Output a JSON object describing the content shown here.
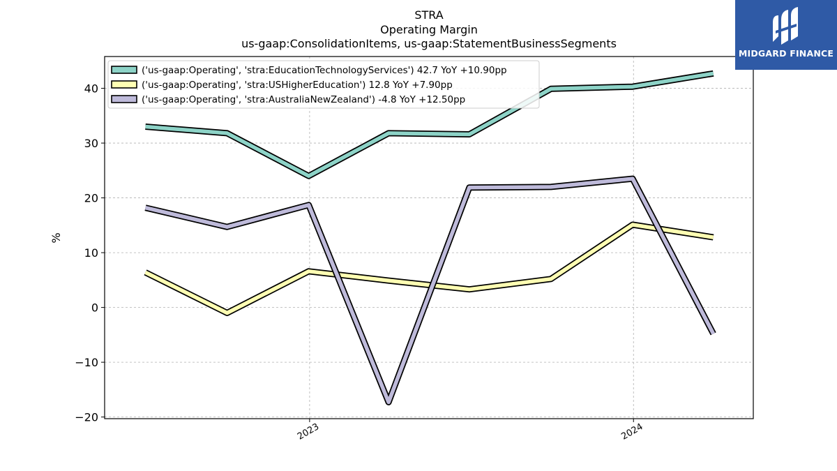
{
  "chart_data": {
    "type": "line",
    "title": "STRA",
    "subtitle": "Operating Margin",
    "subtitle2": "us-gaap:ConsolidationItems, us-gaap:StatementBusinessSegments",
    "xlabel": "",
    "ylabel": "%",
    "x": [
      "2022-06-30",
      "2022-09-30",
      "2022-12-31",
      "2023-03-31",
      "2023-06-30",
      "2023-09-30",
      "2023-12-31",
      "2024-03-31"
    ],
    "xticks": [
      "2023",
      "2024"
    ],
    "xtick_dates": [
      "2023-01-01",
      "2024-01-01"
    ],
    "xlim": [
      "2022-05-15",
      "2024-05-15"
    ],
    "yticks": [
      40,
      30,
      20,
      10,
      0,
      -10,
      -20
    ],
    "ytick_labels": [
      "40",
      "30",
      "20",
      "10",
      "0",
      "−10",
      "−20"
    ],
    "ylim": [
      -20.3,
      45.8
    ],
    "grid": true,
    "legend_position": "top-left",
    "series": [
      {
        "name": "('us-gaap:Operating', 'stra:EducationTechnologyServices') 42.7 YoY +10.90pp",
        "color": "#8dd3c7",
        "values": [
          33.0,
          31.8,
          24.0,
          31.8,
          31.6,
          39.9,
          40.3,
          42.7
        ]
      },
      {
        "name": "('us-gaap:Operating', 'stra:USHigherEducation') 12.8 YoY +7.90pp",
        "color": "#ffffb3",
        "values": [
          6.4,
          -1.0,
          6.6,
          4.9,
          3.3,
          5.2,
          15.1,
          12.8
        ]
      },
      {
        "name": "('us-gaap:Operating', 'stra:AustraliaNewZealand') -4.8 YoY +12.50pp",
        "color": "#bebada",
        "values": [
          18.2,
          14.7,
          18.7,
          -17.3,
          21.9,
          22.0,
          23.5,
          -4.8
        ]
      }
    ]
  },
  "logo": {
    "text": "MIDGARD FINANCE",
    "icon": "midgard-logo-icon",
    "color": "#2f5aa6"
  }
}
